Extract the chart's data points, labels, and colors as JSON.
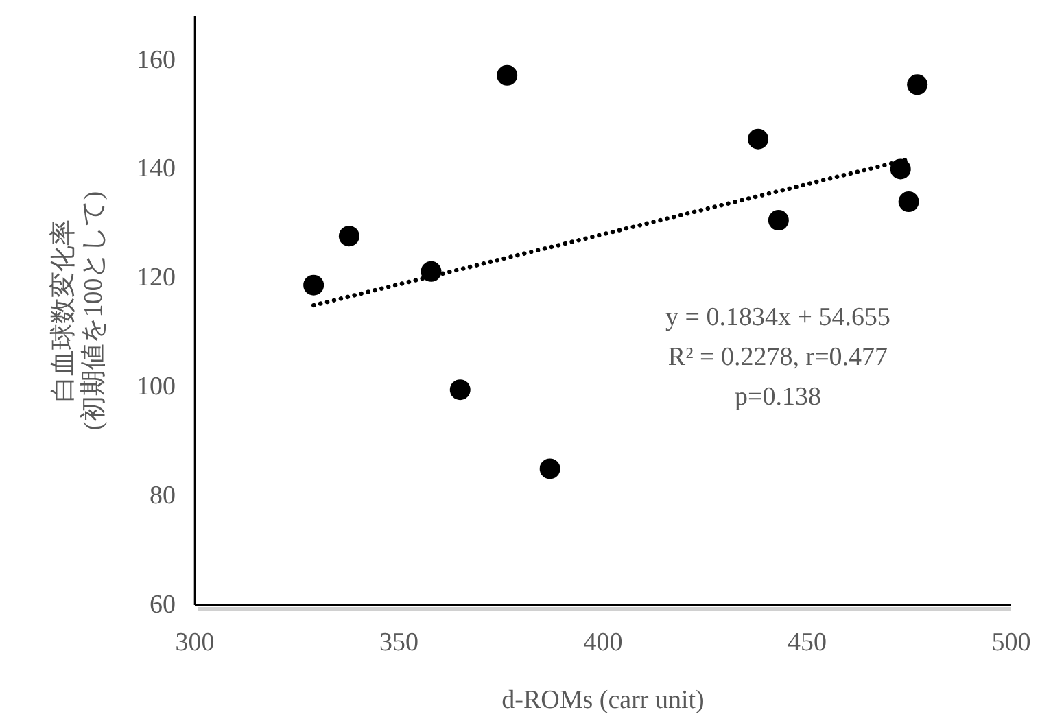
{
  "chart_data": {
    "type": "scatter",
    "xlabel": "d-ROMs (carr unit)",
    "ylabel": "白血球数変化率\n(初期値を100として)",
    "xlim": [
      300,
      500
    ],
    "ylim": [
      60,
      168
    ],
    "xticks": [
      300,
      350,
      400,
      450,
      500
    ],
    "yticks": [
      60,
      80,
      100,
      120,
      140,
      160
    ],
    "series": [
      {
        "type": "scatter",
        "color": "#000000",
        "marker": "circle",
        "x": [
          329.1,
          337.8,
          357.9,
          365.0,
          376.5,
          387.0,
          438.0,
          443.0,
          472.9,
          474.9,
          477.0
        ],
        "values": [
          118.7,
          127.7,
          121.2,
          99.5,
          157.2,
          85.0,
          145.5,
          130.6,
          140.0,
          134.0,
          155.5
        ]
      },
      {
        "type": "line",
        "color": "#000000",
        "line_style": "dotted",
        "marker": "none",
        "x": [
          329.1,
          474.9
        ],
        "values": [
          115.0,
          141.8
        ]
      }
    ],
    "annotations": [
      "y = 0.1834x + 54.655\nR² = 0.2278, r=0.477\np=0.138"
    ]
  }
}
